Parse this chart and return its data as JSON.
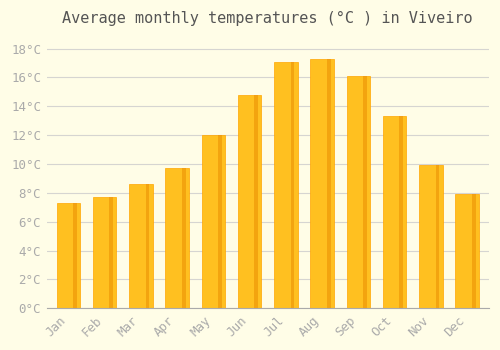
{
  "title": "Average monthly temperatures (°C ) in Viveiro",
  "months": [
    "Jan",
    "Feb",
    "Mar",
    "Apr",
    "May",
    "Jun",
    "Jul",
    "Aug",
    "Sep",
    "Oct",
    "Nov",
    "Dec"
  ],
  "temperatures": [
    7.3,
    7.7,
    8.6,
    9.7,
    12.0,
    14.8,
    17.1,
    17.3,
    16.1,
    13.3,
    9.9,
    7.9
  ],
  "bar_color": "#FFC020",
  "bar_edge_color": "#FFA500",
  "background_color": "#FFFDE7",
  "plot_bg_color": "#FFFDE7",
  "grid_color": "#CCCCCC",
  "tick_label_color": "#AAAAAA",
  "title_color": "#555555",
  "ylim": [
    0,
    19
  ],
  "yticks": [
    0,
    2,
    4,
    6,
    8,
    10,
    12,
    14,
    16,
    18
  ],
  "title_fontsize": 11,
  "tick_fontsize": 9
}
